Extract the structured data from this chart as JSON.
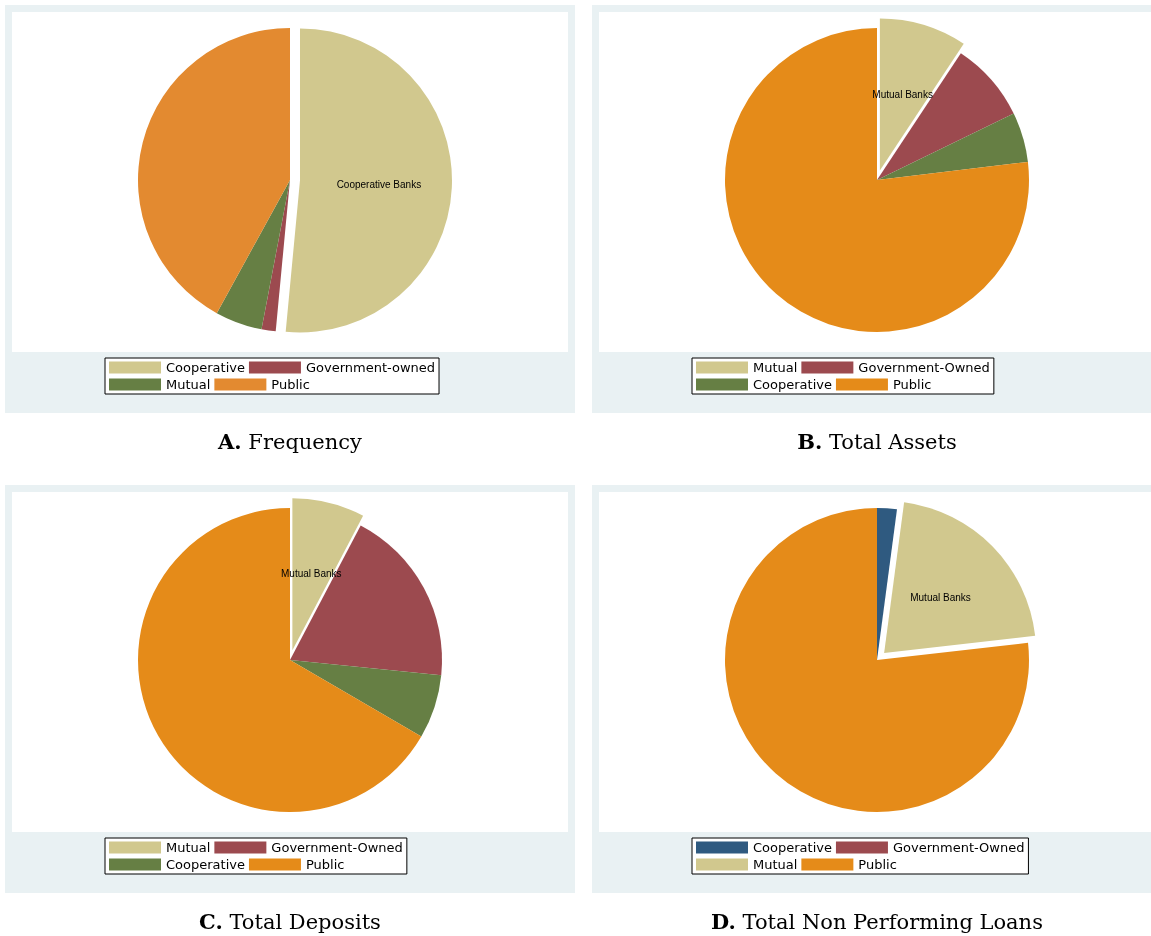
{
  "chart_data": [
    {
      "type": "pie",
      "title": "A. Frequency",
      "categories": [
        "Cooperative",
        "Government-owned",
        "Mutual",
        "Public"
      ],
      "values": [
        51.5,
        1.5,
        5,
        42
      ],
      "colors": [
        "#d1c88e",
        "#9c4a4f",
        "#667f44",
        "#e38a30"
      ],
      "value_labels": [
        "Cooperative Banks",
        null,
        null,
        null
      ],
      "legend": "bottom"
    },
    {
      "type": "pie",
      "title": "B. Total Assets",
      "categories": [
        "Mutual",
        "Government-Owned",
        "Cooperative",
        "Public"
      ],
      "values": [
        9.3,
        8.5,
        5.3,
        76.9
      ],
      "colors": [
        "#d1c88e",
        "#9c4a4f",
        "#667f44",
        "#e58b19"
      ],
      "value_labels": [
        "Mutual Banks",
        null,
        null,
        null
      ],
      "legend": "bottom"
    },
    {
      "type": "pie",
      "title": "C. Total Deposits",
      "categories": [
        "Mutual",
        "Government-Owned",
        "Cooperative",
        "Public"
      ],
      "values": [
        7.7,
        18.9,
        6.8,
        66.6
      ],
      "colors": [
        "#d1c88e",
        "#9c4a4f",
        "#667f44",
        "#e58b19"
      ],
      "value_labels": [
        "Mutual Banks",
        null,
        null,
        null
      ],
      "legend": "bottom"
    },
    {
      "type": "pie",
      "title": "D. Total Non Performing Loans",
      "categories": [
        "Cooperative",
        "Government-Owned",
        "Mutual",
        "Public"
      ],
      "values": [
        2.1,
        0,
        21.1,
        76.8
      ],
      "colors": [
        "#2f5a80",
        "#9c4a4f",
        "#d1c88e",
        "#e58b19"
      ],
      "value_labels": [
        null,
        null,
        "Mutual Banks",
        null
      ],
      "legend": "bottom"
    }
  ]
}
